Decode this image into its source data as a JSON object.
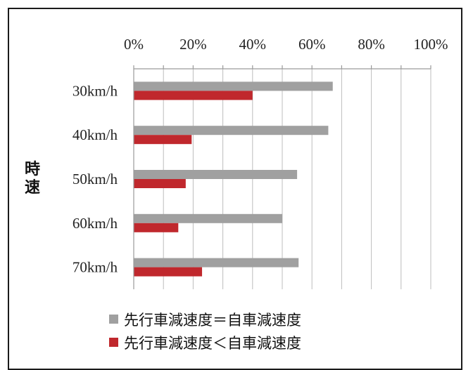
{
  "chart_data": {
    "type": "bar",
    "orientation": "horizontal",
    "ylabel": "時速",
    "categories": [
      "30km/h",
      "40km/h",
      "50km/h",
      "60km/h",
      "70km/h"
    ],
    "x_ticks": [
      "0%",
      "20%",
      "40%",
      "60%",
      "80%",
      "100%"
    ],
    "xlim": [
      0,
      100
    ],
    "grid": "vertical",
    "legend_position": "bottom",
    "series": [
      {
        "name": "先行車減速度＝自車減速度",
        "color": "#a0a0a0",
        "values": [
          67,
          65.5,
          55,
          50,
          55.5
        ]
      },
      {
        "name": "先行車減速度＜自車減速度",
        "color": "#c0282d",
        "values": [
          40,
          19.5,
          17.5,
          15,
          23
        ]
      }
    ]
  }
}
